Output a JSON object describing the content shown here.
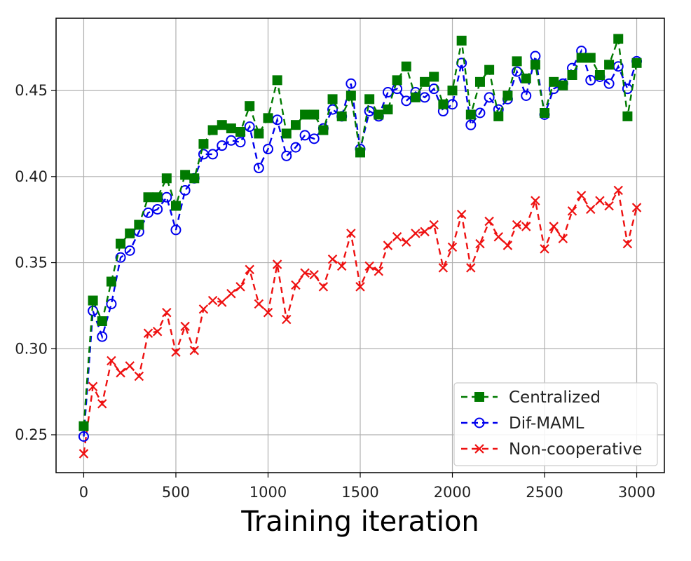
{
  "chart_data": {
    "type": "line",
    "title": "",
    "xlabel": "Training iteration",
    "ylabel": "",
    "xlim": [
      -150,
      3150
    ],
    "ylim": [
      0.228,
      0.492
    ],
    "xticks": [
      0,
      500,
      1000,
      1500,
      2000,
      2500,
      3000
    ],
    "xtick_labels": [
      "0",
      "500",
      "1000",
      "1500",
      "2000",
      "2500",
      "3000"
    ],
    "yticks": [
      0.25,
      0.3,
      0.35,
      0.4,
      0.45
    ],
    "ytick_labels": [
      "0.25",
      "0.30",
      "0.35",
      "0.40",
      "0.45"
    ],
    "grid": true,
    "legend_position": "bottom-right",
    "x": [
      0,
      50,
      100,
      150,
      200,
      250,
      300,
      350,
      400,
      450,
      500,
      550,
      600,
      650,
      700,
      750,
      800,
      850,
      900,
      950,
      1000,
      1050,
      1100,
      1150,
      1200,
      1250,
      1300,
      1350,
      1400,
      1450,
      1500,
      1550,
      1600,
      1650,
      1700,
      1750,
      1800,
      1850,
      1900,
      1950,
      2000,
      2050,
      2100,
      2150,
      2200,
      2250,
      2300,
      2350,
      2400,
      2450,
      2500,
      2550,
      2600,
      2650,
      2700,
      2750,
      2800,
      2850,
      2900,
      2950,
      3000
    ],
    "series": [
      {
        "name": "Centralized",
        "color": "#007a00",
        "marker": "square",
        "values": [
          0.255,
          0.328,
          0.316,
          0.339,
          0.361,
          0.367,
          0.372,
          0.388,
          0.388,
          0.399,
          0.383,
          0.401,
          0.399,
          0.419,
          0.427,
          0.43,
          0.428,
          0.426,
          0.441,
          0.425,
          0.434,
          0.456,
          0.425,
          0.43,
          0.436,
          0.436,
          0.427,
          0.445,
          0.435,
          0.447,
          0.414,
          0.445,
          0.436,
          0.439,
          0.456,
          0.464,
          0.446,
          0.455,
          0.458,
          0.442,
          0.45,
          0.479,
          0.436,
          0.455,
          0.462,
          0.435,
          0.447,
          0.467,
          0.457,
          0.465,
          0.437,
          0.455,
          0.453,
          0.459,
          0.469,
          0.469,
          0.459,
          0.465,
          0.48,
          0.435,
          0.466
        ]
      },
      {
        "name": "Dif-MAML",
        "color": "#0000ee",
        "marker": "circle",
        "values": [
          0.249,
          0.322,
          0.307,
          0.326,
          0.353,
          0.357,
          0.368,
          0.379,
          0.381,
          0.388,
          0.369,
          0.392,
          0.399,
          0.413,
          0.413,
          0.418,
          0.421,
          0.42,
          0.429,
          0.405,
          0.416,
          0.433,
          0.412,
          0.417,
          0.424,
          0.422,
          0.428,
          0.439,
          0.435,
          0.454,
          0.416,
          0.438,
          0.435,
          0.449,
          0.451,
          0.444,
          0.449,
          0.446,
          0.451,
          0.438,
          0.442,
          0.466,
          0.43,
          0.437,
          0.446,
          0.439,
          0.445,
          0.461,
          0.447,
          0.47,
          0.436,
          0.451,
          0.454,
          0.463,
          0.473,
          0.456,
          0.458,
          0.454,
          0.464,
          0.451,
          0.467
        ]
      },
      {
        "name": "Non-cooperative",
        "color": "#ee1111",
        "marker": "x",
        "values": [
          0.239,
          0.278,
          0.268,
          0.293,
          0.286,
          0.29,
          0.284,
          0.309,
          0.31,
          0.321,
          0.298,
          0.313,
          0.299,
          0.323,
          0.328,
          0.327,
          0.332,
          0.336,
          0.346,
          0.326,
          0.321,
          0.349,
          0.317,
          0.337,
          0.344,
          0.343,
          0.336,
          0.352,
          0.348,
          0.367,
          0.336,
          0.348,
          0.345,
          0.36,
          0.365,
          0.362,
          0.367,
          0.368,
          0.372,
          0.347,
          0.359,
          0.378,
          0.347,
          0.361,
          0.374,
          0.365,
          0.36,
          0.372,
          0.371,
          0.386,
          0.358,
          0.371,
          0.364,
          0.38,
          0.389,
          0.381,
          0.386,
          0.383,
          0.392,
          0.361,
          0.382
        ]
      }
    ]
  }
}
